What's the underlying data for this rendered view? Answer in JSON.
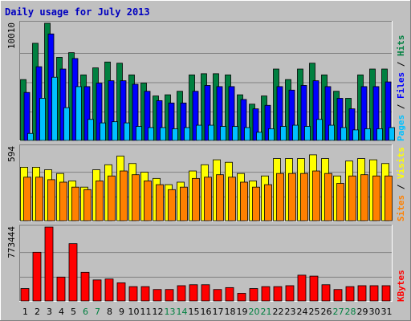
{
  "title": "Daily usage for July 2013",
  "colors": {
    "background": "#c0c0c0",
    "pages": "#00c0ff",
    "files": "#0000ff",
    "hits": "#008040",
    "sites": "#ff8000",
    "visits": "#ffff00",
    "kbytes": "#ff0000",
    "weekend_day": "#008040",
    "weekday": "#000000"
  },
  "chart_data": [
    {
      "type": "bar",
      "panel": "hits-files-pages",
      "y_max_label": "10010",
      "ylim": [
        0,
        10010
      ],
      "legend": [
        "Pages",
        "/",
        "Files",
        "/",
        "Hits"
      ],
      "categories": [
        "1",
        "2",
        "3",
        "4",
        "5",
        "6",
        "7",
        "8",
        "9",
        "10",
        "11",
        "12",
        "13",
        "14",
        "15",
        "16",
        "17",
        "18",
        "19",
        "20",
        "21",
        "22",
        "23",
        "24",
        "25",
        "26",
        "27",
        "28",
        "29",
        "30",
        "31"
      ],
      "series": [
        {
          "name": "Hits",
          "values": [
            5200,
            8300,
            10010,
            7100,
            7500,
            5600,
            6200,
            6700,
            6600,
            5600,
            4900,
            3800,
            3900,
            4200,
            5600,
            5700,
            5700,
            5600,
            3900,
            3100,
            3800,
            6100,
            5200,
            6100,
            6600,
            5600,
            4200,
            3600,
            5600,
            6100,
            6100
          ]
        },
        {
          "name": "Files",
          "values": [
            4100,
            6300,
            9100,
            6100,
            7000,
            4600,
            4900,
            5100,
            5100,
            4800,
            4200,
            3400,
            3200,
            3200,
            4200,
            4700,
            4600,
            4600,
            3500,
            2700,
            3000,
            4600,
            4300,
            4700,
            5100,
            4600,
            3600,
            2700,
            4600,
            4600,
            5000
          ]
        },
        {
          "name": "Pages",
          "values": [
            600,
            3600,
            5400,
            2800,
            4600,
            1800,
            1500,
            1600,
            1500,
            1200,
            1100,
            1100,
            1000,
            1100,
            1300,
            1300,
            1200,
            1200,
            1100,
            700,
            1000,
            1200,
            1300,
            1200,
            1800,
            1300,
            1100,
            900,
            1000,
            1000,
            1100
          ]
        }
      ]
    },
    {
      "type": "bar",
      "panel": "visits-sites",
      "y_max_label": "594",
      "ylim": [
        0,
        594
      ],
      "legend": [
        "Sites",
        "/",
        "Visits"
      ],
      "categories": [
        "1",
        "2",
        "3",
        "4",
        "5",
        "6",
        "7",
        "8",
        "9",
        "10",
        "11",
        "12",
        "13",
        "14",
        "15",
        "16",
        "17",
        "18",
        "19",
        "20",
        "21",
        "22",
        "23",
        "24",
        "25",
        "26",
        "27",
        "28",
        "29",
        "30",
        "31"
      ],
      "series": [
        {
          "name": "Visits",
          "values": [
            430,
            430,
            410,
            380,
            320,
            270,
            410,
            450,
            520,
            460,
            390,
            340,
            290,
            310,
            400,
            450,
            490,
            470,
            380,
            320,
            360,
            500,
            500,
            500,
            530,
            500,
            360,
            480,
            500,
            490,
            460
          ]
        },
        {
          "name": "Sites",
          "values": [
            350,
            350,
            330,
            310,
            270,
            250,
            320,
            360,
            400,
            370,
            320,
            290,
            250,
            270,
            340,
            350,
            370,
            350,
            310,
            270,
            290,
            380,
            380,
            380,
            400,
            380,
            300,
            360,
            370,
            360,
            360
          ]
        }
      ]
    },
    {
      "type": "bar",
      "panel": "kbytes",
      "y_max_label": "773444",
      "ylim": [
        0,
        773444
      ],
      "legend": [
        "KBytes"
      ],
      "categories": [
        "1",
        "2",
        "3",
        "4",
        "5",
        "6",
        "7",
        "8",
        "9",
        "10",
        "11",
        "12",
        "13",
        "14",
        "15",
        "16",
        "17",
        "18",
        "19",
        "20",
        "21",
        "22",
        "23",
        "24",
        "25",
        "26",
        "27",
        "28",
        "29",
        "30",
        "31"
      ],
      "series": [
        {
          "name": "KBytes",
          "values": [
            130000,
            510000,
            773444,
            250000,
            600000,
            300000,
            220000,
            230000,
            190000,
            150000,
            150000,
            120000,
            120000,
            160000,
            170000,
            170000,
            120000,
            140000,
            80000,
            130000,
            150000,
            150000,
            160000,
            270000,
            260000,
            170000,
            120000,
            150000,
            160000,
            160000,
            160000
          ]
        }
      ]
    }
  ]
}
